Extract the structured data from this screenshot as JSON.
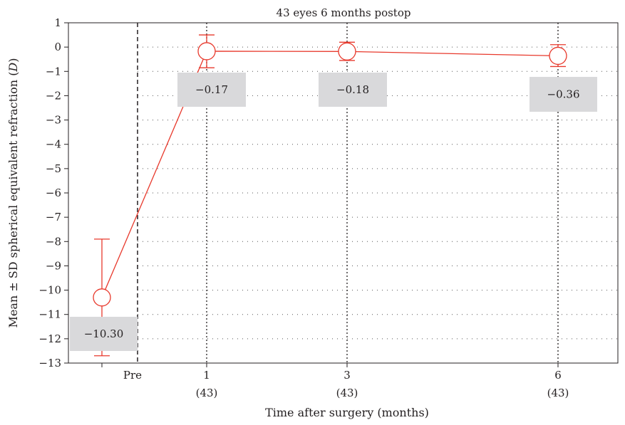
{
  "chart_data": {
    "type": "line",
    "title": "43 eyes 6 months postop",
    "xlabel": "Time after surgery (months)",
    "ylabel_main": "Mean ± SD spherical equivalent refraction (",
    "ylabel_unit": "D",
    "ylabel_close": ")",
    "ylim": [
      -13,
      1
    ],
    "yticks": [
      1,
      0,
      -1,
      -2,
      -3,
      -4,
      -5,
      -6,
      -7,
      -8,
      -9,
      -10,
      -11,
      -12,
      -13
    ],
    "ytick_labels": [
      "1",
      "0",
      "−1",
      "−2",
      "−3",
      "−4",
      "−5",
      "−6",
      "−7",
      "−8",
      "−9",
      "−10",
      "−11",
      "−12",
      "−13"
    ],
    "grid": true,
    "x_ticks": [
      {
        "label": "Pre",
        "sublabel": ""
      },
      {
        "label": "1",
        "sublabel": "(43)"
      },
      {
        "label": "3",
        "sublabel": "(43)"
      },
      {
        "label": "6",
        "sublabel": "(43)"
      }
    ],
    "points": [
      {
        "x": "Pre",
        "y": -10.3,
        "sd_low": -12.7,
        "sd_high": -7.9,
        "label": "−10.30"
      },
      {
        "x": "1",
        "y": -0.17,
        "sd_low": -0.85,
        "sd_high": 0.5,
        "label": "−0.17"
      },
      {
        "x": "3",
        "y": -0.18,
        "sd_low": -0.55,
        "sd_high": 0.2,
        "label": "−0.18"
      },
      {
        "x": "6",
        "y": -0.36,
        "sd_low": -0.8,
        "sd_high": 0.1,
        "label": "−0.36"
      }
    ],
    "colors": {
      "series": "#e8392c",
      "label_box": "#d9d9db",
      "axis": "#231f20",
      "grid": "#555555"
    }
  }
}
